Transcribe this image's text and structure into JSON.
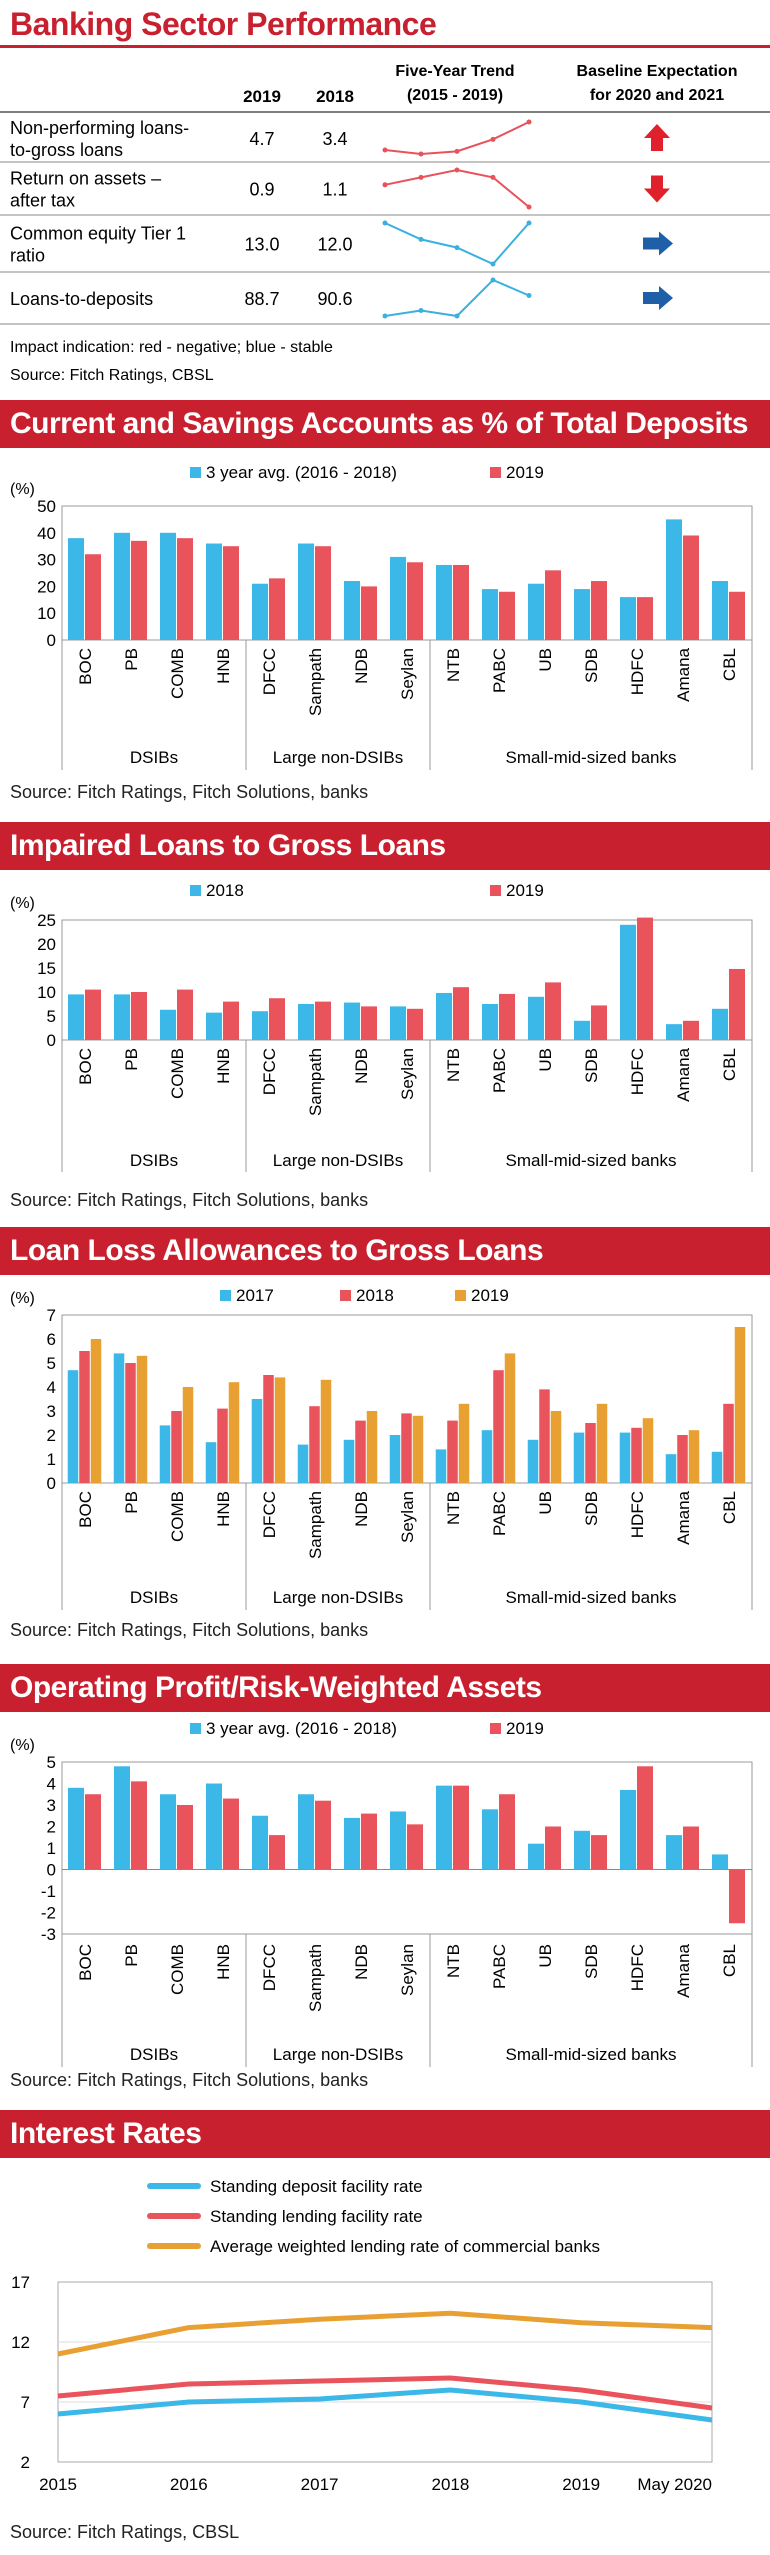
{
  "title": "Banking Sector Performance",
  "table": {
    "col_2019": "2019",
    "col_2018": "2018",
    "col_trend": "Five-Year Trend",
    "col_trend_sub": "(2015 - 2019)",
    "col_exp": "Baseline Expectation",
    "col_exp_sub": "for 2020 and 2021",
    "rows": [
      {
        "label1": "Non-performing loans-",
        "label2": "to-gross loans",
        "v2019": "4.7",
        "v2018": "3.4",
        "trend": [
          2.6,
          2.3,
          2.5,
          3.4,
          4.7
        ],
        "color": "#e8525a",
        "arrow": "up"
      },
      {
        "label1": "Return on assets –",
        "label2": "after tax",
        "v2019": "0.9",
        "v2018": "1.1",
        "trend": [
          1.05,
          1.1,
          1.15,
          1.1,
          0.9
        ],
        "color": "#e8525a",
        "arrow": "down"
      },
      {
        "label1": "Common equity Tier 1",
        "label2": "ratio",
        "v2019": "13.0",
        "v2018": "12.0",
        "trend": [
          13.0,
          12.6,
          12.4,
          12.0,
          13.0
        ],
        "color": "#3ab0e0",
        "arrow": "right"
      },
      {
        "label1": "Loans-to-deposits",
        "label2": "",
        "v2019": "88.7",
        "v2018": "90.6",
        "trend": [
          85.0,
          86.0,
          85.0,
          91.5,
          88.7
        ],
        "color": "#3ab0e0",
        "arrow": "right"
      }
    ],
    "note": "Impact indication: red - negative; blue - stable",
    "source": "Source: Fitch Ratings, CBSL"
  },
  "chart_data": [
    {
      "type": "bar",
      "title": "Current and Savings Accounts as % of Total Deposits",
      "ylabel": "(%)",
      "ylim": [
        0,
        50
      ],
      "yticks": [
        0,
        10,
        20,
        30,
        40,
        50
      ],
      "categories": [
        "BOC",
        "PB",
        "COMB",
        "HNB",
        "DFCC",
        "Sampath",
        "NDB",
        "Seylan",
        "NTB",
        "PABC",
        "UB",
        "SDB",
        "HDFC",
        "Amana",
        "CBL"
      ],
      "groups": [
        {
          "name": "DSIBs",
          "from": 0,
          "to": 3
        },
        {
          "name": "Large non-DSIBs",
          "from": 4,
          "to": 7
        },
        {
          "name": "Small-mid-sized banks",
          "from": 8,
          "to": 14
        }
      ],
      "series": [
        {
          "name": "3 year avg. (2016 - 2018)",
          "color": "#3bb8e8",
          "values": [
            38,
            40,
            40,
            36,
            21,
            36,
            22,
            31,
            28,
            19,
            21,
            19,
            16,
            45,
            22
          ]
        },
        {
          "name": "2019",
          "color": "#e9545c",
          "values": [
            32,
            37,
            38,
            35,
            23,
            35,
            20,
            29,
            28,
            18,
            26,
            22,
            16,
            39,
            18
          ]
        }
      ],
      "source": "Source: Fitch Ratings, Fitch Solutions, banks"
    },
    {
      "type": "bar",
      "title": "Impaired Loans to Gross Loans",
      "ylabel": "(%)",
      "ylim": [
        0,
        25
      ],
      "yticks": [
        0,
        5,
        10,
        15,
        20,
        25
      ],
      "categories": [
        "BOC",
        "PB",
        "COMB",
        "HNB",
        "DFCC",
        "Sampath",
        "NDB",
        "Seylan",
        "NTB",
        "PABC",
        "UB",
        "SDB",
        "HDFC",
        "Amana",
        "CBL"
      ],
      "groups": [
        {
          "name": "DSIBs",
          "from": 0,
          "to": 3
        },
        {
          "name": "Large non-DSIBs",
          "from": 4,
          "to": 7
        },
        {
          "name": "Small-mid-sized banks",
          "from": 8,
          "to": 14
        }
      ],
      "series": [
        {
          "name": "2018",
          "color": "#3bb8e8",
          "values": [
            9.5,
            9.5,
            6.3,
            5.7,
            6.0,
            7.5,
            7.8,
            7.0,
            9.8,
            7.5,
            9.0,
            4.0,
            24.0,
            3.3,
            6.5
          ]
        },
        {
          "name": "2019",
          "color": "#e9545c",
          "values": [
            10.5,
            10.0,
            10.5,
            8.0,
            8.7,
            8.0,
            7.0,
            6.5,
            11.0,
            9.6,
            12.0,
            7.2,
            25.5,
            4.0,
            14.8
          ]
        }
      ],
      "source": "Source: Fitch Ratings, Fitch Solutions, banks"
    },
    {
      "type": "bar",
      "title": "Loan Loss Allowances to Gross Loans",
      "ylabel": "(%)",
      "ylim": [
        0,
        7
      ],
      "yticks": [
        0,
        1,
        2,
        3,
        4,
        5,
        6,
        7
      ],
      "categories": [
        "BOC",
        "PB",
        "COMB",
        "HNB",
        "DFCC",
        "Sampath",
        "NDB",
        "Seylan",
        "NTB",
        "PABC",
        "UB",
        "SDB",
        "HDFC",
        "Amana",
        "CBL"
      ],
      "groups": [
        {
          "name": "DSIBs",
          "from": 0,
          "to": 3
        },
        {
          "name": "Large non-DSIBs",
          "from": 4,
          "to": 7
        },
        {
          "name": "Small-mid-sized banks",
          "from": 8,
          "to": 14
        }
      ],
      "series": [
        {
          "name": "2017",
          "color": "#3bb8e8",
          "values": [
            4.7,
            5.4,
            2.4,
            1.7,
            3.5,
            1.6,
            1.8,
            2.0,
            1.4,
            2.2,
            1.8,
            2.1,
            2.1,
            1.2,
            1.3
          ]
        },
        {
          "name": "2018",
          "color": "#e9545c",
          "values": [
            5.5,
            5.0,
            3.0,
            3.1,
            4.5,
            3.2,
            2.6,
            2.9,
            2.6,
            4.7,
            3.9,
            2.5,
            2.3,
            2.0,
            3.3
          ]
        },
        {
          "name": "2019",
          "color": "#e8a033",
          "values": [
            6.0,
            5.3,
            4.0,
            4.2,
            4.4,
            4.3,
            3.0,
            2.8,
            3.3,
            5.4,
            3.0,
            3.3,
            2.7,
            2.2,
            6.5
          ]
        }
      ],
      "source": "Source: Fitch Ratings, Fitch Solutions, banks"
    },
    {
      "type": "bar",
      "title": "Operating Profit/Risk-Weighted Assets",
      "ylabel": "(%)",
      "ylim": [
        -3,
        5
      ],
      "yticks": [
        -3,
        -2,
        -1,
        0,
        1,
        2,
        3,
        4,
        5
      ],
      "categories": [
        "BOC",
        "PB",
        "COMB",
        "HNB",
        "DFCC",
        "Sampath",
        "NDB",
        "Seylan",
        "NTB",
        "PABC",
        "UB",
        "SDB",
        "HDFC",
        "Amana",
        "CBL"
      ],
      "groups": [
        {
          "name": "DSIBs",
          "from": 0,
          "to": 3
        },
        {
          "name": "Large non-DSIBs",
          "from": 4,
          "to": 7
        },
        {
          "name": "Small-mid-sized banks",
          "from": 8,
          "to": 14
        }
      ],
      "series": [
        {
          "name": "3 year avg. (2016 - 2018)",
          "color": "#3bb8e8",
          "values": [
            3.8,
            4.8,
            3.5,
            4.0,
            2.5,
            3.5,
            2.4,
            2.7,
            3.9,
            2.8,
            1.2,
            1.8,
            3.7,
            1.6,
            0.7
          ]
        },
        {
          "name": "2019",
          "color": "#e9545c",
          "values": [
            3.5,
            4.1,
            3.0,
            3.3,
            1.6,
            3.2,
            2.6,
            2.1,
            3.9,
            3.5,
            2.0,
            1.6,
            4.8,
            2.0,
            -2.5
          ]
        }
      ],
      "source": "Source: Fitch Ratings, Fitch Solutions, banks"
    },
    {
      "type": "line",
      "title": "Interest Rates",
      "ylabel": "",
      "ylim": [
        2,
        17
      ],
      "yticks": [
        2,
        7,
        12,
        17
      ],
      "x": [
        "2015",
        "2016",
        "2017",
        "2018",
        "2019",
        "May 2020"
      ],
      "series": [
        {
          "name": "Standing deposit facility rate",
          "color": "#3bb8e8",
          "values": [
            6.0,
            7.0,
            7.25,
            8.0,
            7.0,
            5.5
          ]
        },
        {
          "name": "Standing lending facility rate",
          "color": "#e9545c",
          "values": [
            7.5,
            8.5,
            8.75,
            9.0,
            8.0,
            6.5
          ]
        },
        {
          "name": "Average weighted lending rate of commercial banks",
          "color": "#e8a033",
          "values": [
            11.0,
            13.2,
            13.9,
            14.4,
            13.6,
            13.2
          ]
        }
      ],
      "source": "Source: Fitch Ratings, CBSL"
    }
  ]
}
